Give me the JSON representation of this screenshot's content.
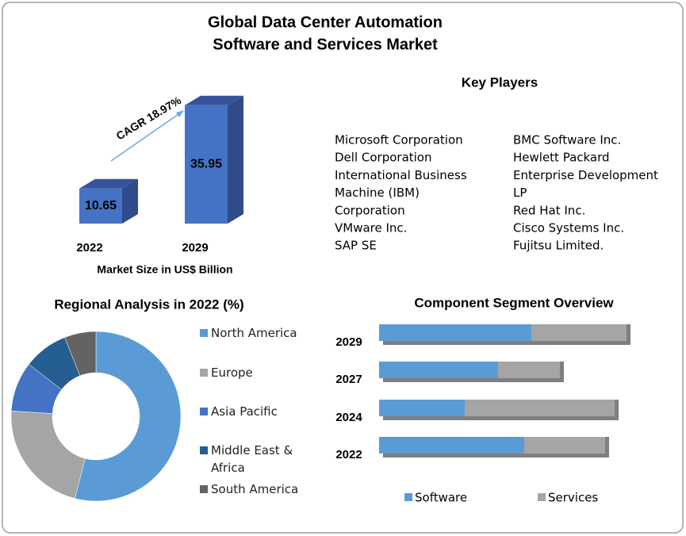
{
  "title": [
    "Global Data Center Automation",
    "Software and Services Market"
  ],
  "key_players": {
    "title": "Key Players",
    "columns": [
      [
        "Microsoft Corporation",
        "Dell Corporation",
        "International Business",
        "Machine (IBM)",
        "Corporation",
        "VMware Inc.",
        "SAP SE"
      ],
      [
        "BMC Software Inc.",
        "Hewlett Packard",
        "Enterprise Development",
        "LP",
        "Red Hat Inc.",
        "Cisco Systems Inc.",
        "Fujitsu Limited."
      ]
    ]
  },
  "chart_data": [
    {
      "type": "bar3d",
      "categories": [
        "2022",
        "2029"
      ],
      "values": [
        10.65,
        35.95
      ],
      "color": "#4472c4",
      "annotation": "CAGR 18.97%",
      "x_label": "Market Size in US$ Billion"
    },
    {
      "type": "donut",
      "title": "Regional Analysis in 2022 (%)",
      "categories": [
        "North America",
        "Europe",
        "Asia Pacific",
        "Middle East & Africa",
        "South America"
      ],
      "values": [
        54,
        22,
        9.5,
        8.5,
        6
      ],
      "colors": [
        "#5b9bd5",
        "#a5a5a5",
        "#4472c4",
        "#255e91",
        "#636363"
      ]
    },
    {
      "type": "stacked-hbar",
      "title": "Component Segment Overview",
      "categories": [
        "2029",
        "2027",
        "2024",
        "2022"
      ],
      "series": [
        {
          "name": "Software",
          "color": "#5b9bd5",
          "values": [
            64,
            50,
            36,
            61
          ]
        },
        {
          "name": "Services",
          "color": "#a5a5a5",
          "values": [
            40,
            26,
            63,
            34
          ]
        }
      ]
    }
  ]
}
